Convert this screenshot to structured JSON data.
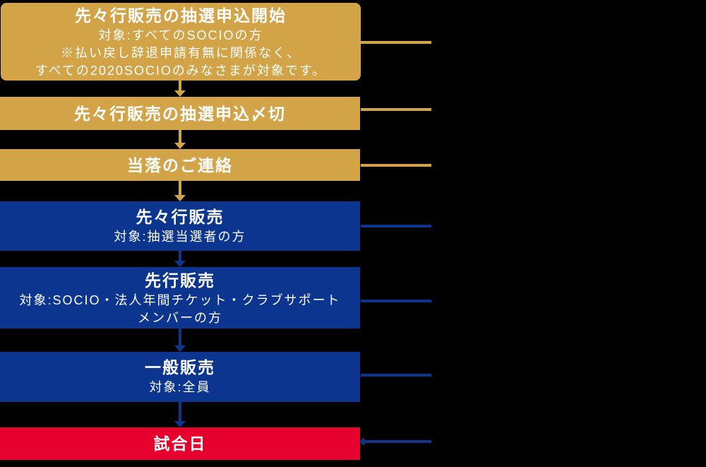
{
  "colors": {
    "gold": "#D3A347",
    "blue": "#0C3590",
    "red": "#E5002E",
    "text": "#FFFFFF",
    "background": "#000000"
  },
  "icons": {
    "down_arrow": "css-triangle-down",
    "left_arrow": "css-triangle-left"
  },
  "diagram": {
    "steps": [
      {
        "id": "pre-pre-sale-lottery-open",
        "accent": "gold",
        "title": "先々行販売の抽選申込開始",
        "lines": [
          "対象:すべてのSOCIOの方",
          "※払い戻し辞退申請有無に関係なく、",
          "すべての2020SOCIOのみなさまが対象です。"
        ]
      },
      {
        "id": "pre-pre-sale-lottery-deadline",
        "accent": "gold",
        "title": "先々行販売の抽選申込〆切",
        "lines": []
      },
      {
        "id": "lottery-result-notification",
        "accent": "gold",
        "title": "当落のご連絡",
        "lines": []
      },
      {
        "id": "pre-pre-sale",
        "accent": "blue",
        "title": "先々行販売",
        "lines": [
          "対象:抽選当選者の方"
        ]
      },
      {
        "id": "pre-sale",
        "accent": "blue",
        "title": "先行販売",
        "lines": [
          "対象:SOCIO・法人年間チケット・クラブサポート",
          "メンバーの方"
        ]
      },
      {
        "id": "general-sale",
        "accent": "blue",
        "title": "一般販売",
        "lines": [
          "対象:全員"
        ]
      },
      {
        "id": "match-day",
        "accent": "red",
        "title": "試合日",
        "lines": []
      }
    ],
    "connectors": [
      {
        "from": 0,
        "to": 1,
        "color": "gold"
      },
      {
        "from": 1,
        "to": 2,
        "color": "gold"
      },
      {
        "from": 2,
        "to": 3,
        "color": "gold"
      },
      {
        "from": 3,
        "to": 4,
        "color": "blue"
      },
      {
        "from": 4,
        "to": 5,
        "color": "blue"
      },
      {
        "from": 5,
        "to": 6,
        "color": "blue"
      }
    ],
    "timeline_ticks": [
      {
        "step": 0,
        "color": "gold",
        "arrow": false
      },
      {
        "step": 1,
        "color": "gold",
        "arrow": false
      },
      {
        "step": 2,
        "color": "gold",
        "arrow": false
      },
      {
        "step": 3,
        "color": "blue",
        "arrow": false
      },
      {
        "step": 4,
        "color": "blue",
        "arrow": false
      },
      {
        "step": 5,
        "color": "blue",
        "arrow": false
      },
      {
        "step": 6,
        "color": "blue",
        "arrow": true
      }
    ]
  }
}
